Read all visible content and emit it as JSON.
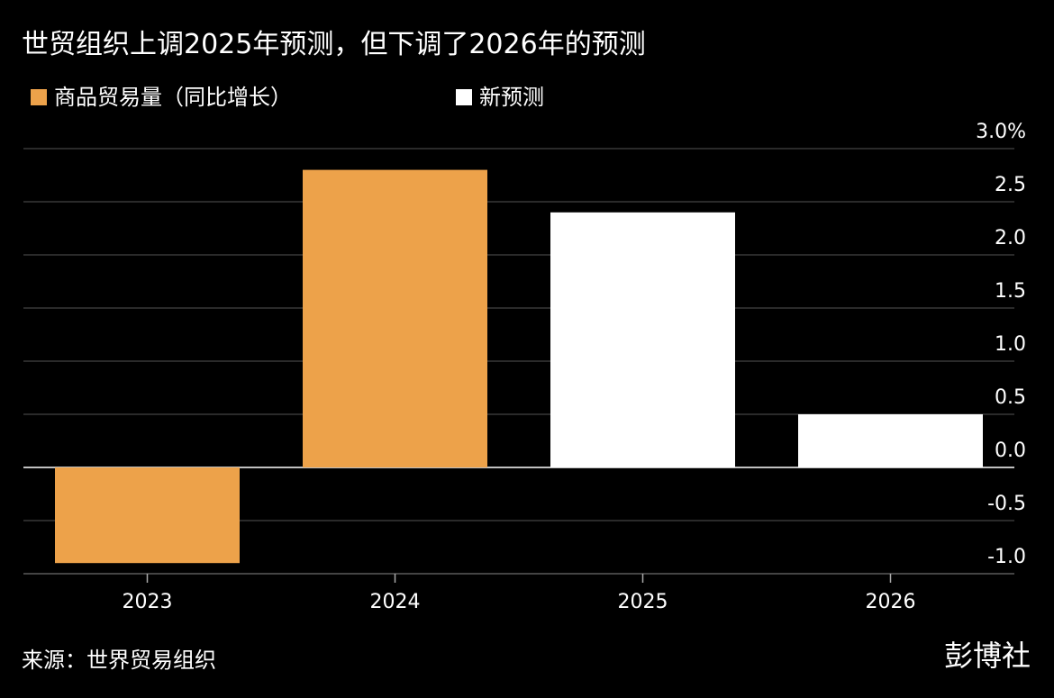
{
  "title": "世贸组织上调2025年预测，但下调了2026年的预测",
  "legend": {
    "items": [
      {
        "label": "商品贸易量（同比增长）",
        "color": "#eda24a"
      },
      {
        "label": "新预测",
        "color": "#ffffff"
      }
    ]
  },
  "footer": {
    "source": "来源：世界贸易组织",
    "brand": "彭博社"
  },
  "chart_data": {
    "type": "bar",
    "categories": [
      "2023",
      "2024",
      "2025",
      "2026"
    ],
    "values": [
      -0.9,
      2.8,
      2.4,
      0.5
    ],
    "bar_colors": [
      "#eda24a",
      "#eda24a",
      "#ffffff",
      "#ffffff"
    ],
    "ylim": [
      -1.0,
      3.0
    ],
    "yticks": [
      3.0,
      2.5,
      2.0,
      1.5,
      1.0,
      0.5,
      0.0,
      -0.5,
      -1.0
    ],
    "ytick_labels": [
      "3.0%",
      "2.5",
      "2.0",
      "1.5",
      "1.0",
      "0.5",
      "0.0",
      "-0.5",
      "-1.0"
    ],
    "xlabel": "",
    "ylabel": "",
    "grid": true,
    "y_axis_position": "right",
    "legend_position": "top-left"
  }
}
